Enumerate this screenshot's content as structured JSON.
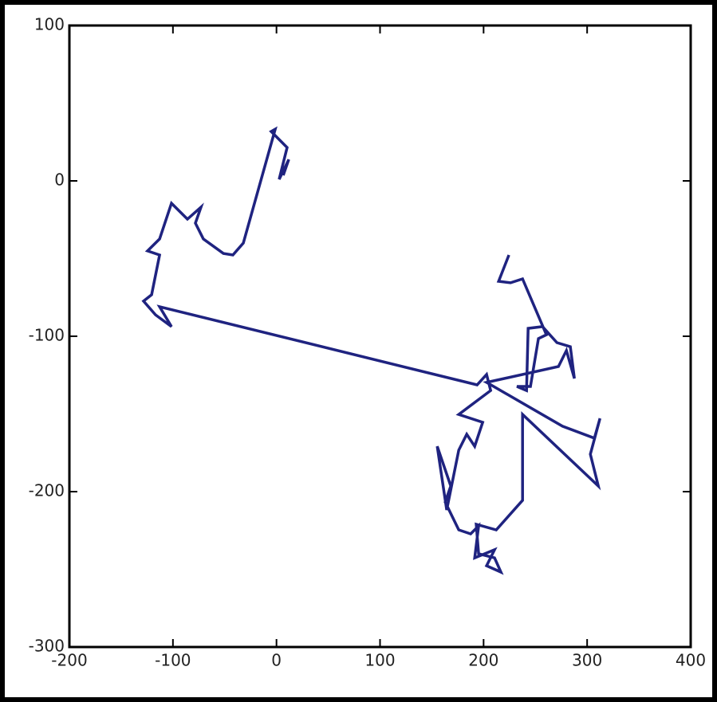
{
  "chart_data": {
    "type": "line",
    "series": [
      {
        "color": "#1f2380",
        "x": [
          6.5,
          11.9,
          2.6,
          10.3,
          -5.1,
          -1.2,
          -32.0,
          -42.1,
          -51.3,
          -70.6,
          -78.3,
          -72.9,
          -86.0,
          -101.4,
          -112.9,
          -124.5,
          -112.9,
          -120.6,
          -128.4,
          -116.8,
          -101.4,
          -112.9,
          193.7,
          202.9,
          206.8,
          176.0,
          199.1,
          191.4,
          183.7,
          176.0,
          164.4,
          155.2,
          168.3,
          162.9,
          176.0,
          187.5,
          195.2,
          191.4,
          210.6,
          202.9,
          216.8,
          210.6,
          195.2,
          192.9,
          212.2,
          237.6,
          237.6,
          310.8,
          303.1,
          312.4,
          307.0,
          276.2,
          202.9,
          272.3,
          280.0,
          287.7,
          283.8,
          270.8,
          256.9,
          243.0,
          241.5,
          232.2,
          245.3,
          253.0,
          260.7,
          237.6,
          226.0,
          214.5,
          224.5
        ],
        "values": [
          3.6,
          13.8,
          1.0,
          21.5,
          31.8,
          33.3,
          -40.0,
          -47.7,
          -46.7,
          -37.4,
          -27.2,
          -16.9,
          -24.6,
          -14.4,
          -37.4,
          -45.1,
          -47.7,
          -73.3,
          -77.4,
          -86.2,
          -93.8,
          -81.0,
          -131.3,
          -124.6,
          -134.9,
          -150.3,
          -155.4,
          -170.8,
          -163.1,
          -173.3,
          -211.8,
          -170.8,
          -196.4,
          -206.7,
          -224.6,
          -227.2,
          -222.1,
          -242.6,
          -237.4,
          -247.7,
          -251.8,
          -242.6,
          -240.0,
          -221.0,
          -224.6,
          -205.6,
          -150.3,
          -196.4,
          -175.9,
          -152.8,
          -165.6,
          -157.9,
          -129.7,
          -119.5,
          -109.2,
          -127.2,
          -106.7,
          -104.1,
          -93.8,
          -94.9,
          -134.9,
          -132.3,
          -132.3,
          -101.5,
          -99.0,
          -63.1,
          -65.6,
          -64.6,
          -47.7
        ]
      }
    ],
    "xlim": [
      -200,
      400
    ],
    "xticks": [
      -200,
      -100,
      0,
      100,
      200,
      300,
      400
    ],
    "ylim": [
      -300,
      100
    ],
    "yticks": [
      -300,
      -200,
      -100,
      0,
      100
    ]
  }
}
